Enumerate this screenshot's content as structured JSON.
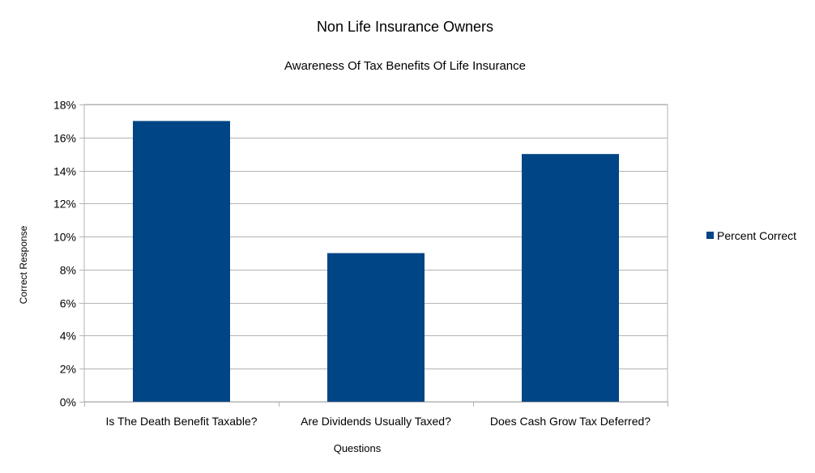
{
  "chart_data": {
    "type": "bar",
    "title": "Non Life Insurance Owners",
    "subtitle": "Awareness Of Tax Benefits Of Life Insurance",
    "xlabel": "Questions",
    "ylabel": "Correct Response",
    "categories": [
      "Is The Death Benefit Taxable?",
      "Are Dividends Usually Taxed?",
      "Does Cash Grow Tax Deferred?"
    ],
    "series": [
      {
        "name": "Percent Correct",
        "color": "#004586",
        "values": [
          17,
          9,
          15
        ]
      }
    ],
    "ylim": [
      0,
      18
    ],
    "ytick_step": 2,
    "ytick_labels": [
      "0%",
      "2%",
      "4%",
      "6%",
      "8%",
      "10%",
      "12%",
      "14%",
      "16%",
      "18%"
    ],
    "grid": true,
    "legend_position": "right"
  }
}
